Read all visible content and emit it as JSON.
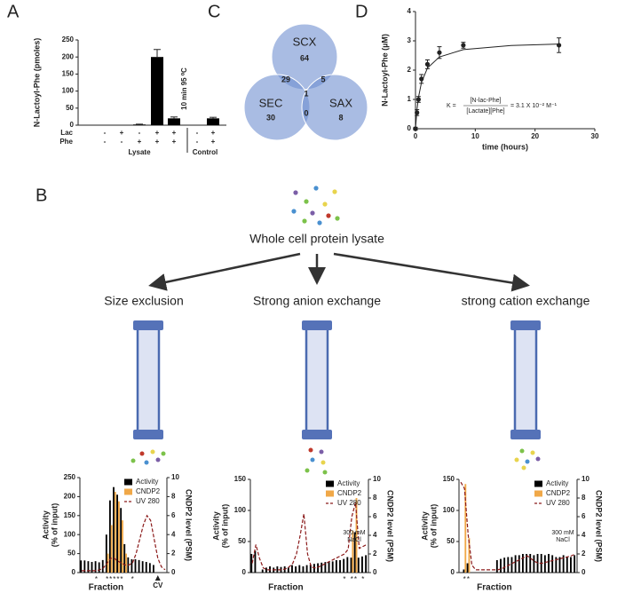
{
  "panel_labels": [
    "A",
    "B",
    "C",
    "D"
  ],
  "schematic": {
    "source": "Whole cell protein lysate",
    "methods": [
      "Size exclusion",
      "Strong anion exchange",
      "strong cation exchange"
    ]
  },
  "chart_data": [
    {
      "type": "bar",
      "ylabel": "N-Lactoyl-Phe (pmoles)",
      "color": "#000000",
      "values": [
        0,
        0,
        2,
        200,
        20,
        0,
        20
      ],
      "errors": [
        0,
        0,
        1,
        22,
        4,
        0,
        3
      ],
      "ylim": [
        0,
        250
      ],
      "yticks": [
        0,
        50,
        100,
        150,
        200,
        250
      ],
      "conditions": [
        {
          "name": "Lac",
          "values": [
            "-",
            "+",
            "-",
            "+",
            "+",
            "-",
            "+"
          ]
        },
        {
          "name": "Phe",
          "values": [
            "-",
            "-",
            "+",
            "+",
            "+",
            "-",
            "+"
          ]
        }
      ],
      "annotations": [
        null,
        null,
        null,
        null,
        "10 min 95 ⁰C",
        null,
        null
      ],
      "groups": [
        "Lysate",
        "Control"
      ]
    },
    {
      "type": "venn",
      "color": "#6f8fd0",
      "sets": [
        "SCX",
        "SEC",
        "SAX"
      ],
      "regions": {
        "SCX": 64,
        "SEC": 30,
        "SAX": 8,
        "SCX&SEC": 29,
        "SCX&SAX": 5,
        "SEC&SAX": 0,
        "SCX&SEC&SAX": 1
      }
    },
    {
      "type": "errorline",
      "xlabel": "time (hours)",
      "ylabel": "N-Lactoyl-Phe (µM)",
      "color": "#222222",
      "x": [
        0,
        0.25,
        0.5,
        1,
        2,
        4,
        8,
        24
      ],
      "values": [
        0,
        0.55,
        1.0,
        1.7,
        2.2,
        2.6,
        2.85,
        2.85
      ],
      "errors": [
        0.05,
        0.1,
        0.1,
        0.15,
        0.15,
        0.2,
        0.1,
        0.25
      ],
      "fit": {
        "x": [
          0,
          0.25,
          0.5,
          1,
          2,
          4,
          8,
          16,
          24
        ],
        "values": [
          0,
          0.65,
          1.07,
          1.58,
          2.07,
          2.45,
          2.7,
          2.84,
          2.89
        ]
      },
      "xlim": [
        0,
        30
      ],
      "xticks": [
        0,
        10,
        20,
        30
      ],
      "ylim": [
        0,
        4
      ],
      "yticks": [
        0,
        1,
        2,
        3,
        4
      ],
      "equation": {
        "prefix": "K =",
        "numerator": "[N-lac-Phe]",
        "denominator": "[Lactate][Phe]",
        "suffix": "= 3.1 X 10⁻² M⁻¹"
      }
    },
    {
      "type": "fractions",
      "ylabel": [
        "Activity",
        "(% of input)"
      ],
      "y2label": "CNDP2 level (PSM)",
      "xlabel": "Fraction",
      "legend": "upper right",
      "ylim": [
        0,
        250
      ],
      "yticks": [
        0,
        50,
        100,
        150,
        200,
        250
      ],
      "y2lim": [
        0,
        10
      ],
      "y2ticks": [
        0,
        2,
        4,
        6,
        8,
        10
      ],
      "series": [
        {
          "name": "Activity",
          "color": "#000000",
          "style": "bar",
          "values": [
            32,
            32,
            30,
            28,
            30,
            27,
            33,
            100,
            190,
            225,
            205,
            170,
            75,
            40,
            35,
            35,
            33,
            30,
            28,
            25,
            20,
            0,
            0,
            0
          ]
        },
        {
          "name": "CNDP2",
          "color": "#f0a848",
          "style": "bar",
          "axis": "y2",
          "values": [
            0,
            0,
            0,
            0,
            0,
            0,
            0,
            2,
            5,
            8.5,
            7.5,
            5.5,
            2,
            0,
            0,
            0,
            0,
            0,
            0,
            0,
            0,
            0,
            0,
            0
          ]
        },
        {
          "name": "UV 280",
          "color": "#8b1a1a",
          "style": "dashed",
          "axis": "y2",
          "values": [
            0.2,
            0.2,
            0.2,
            0.2,
            0.2,
            0.3,
            0.5,
            1,
            1.5,
            1.5,
            1.2,
            1,
            0.8,
            0.8,
            1,
            2,
            3.5,
            5,
            6,
            5.5,
            3.5,
            1.5,
            0.6,
            0.3
          ]
        }
      ],
      "fraction_marks": [
        null,
        null,
        null,
        null,
        "*",
        null,
        null,
        "*",
        "*",
        "*",
        "*",
        "*",
        null,
        null,
        "*",
        null,
        null,
        null,
        null,
        null,
        null,
        null,
        null,
        null
      ],
      "cv_marks": [
        null,
        null,
        null,
        null,
        null,
        null,
        null,
        null,
        null,
        null,
        null,
        null,
        null,
        null,
        null,
        null,
        null,
        null,
        null,
        null,
        null,
        "CV",
        null,
        null
      ]
    },
    {
      "type": "fractions",
      "ylabel": [
        "Activity",
        "(% of input)"
      ],
      "y2label": "CNDP2 level (PSM)",
      "xlabel": "Fraction",
      "legend": "upper right",
      "ylim": [
        0,
        150
      ],
      "yticks": [
        0,
        50,
        100,
        150
      ],
      "y2lim": [
        0,
        10
      ],
      "y2ticks": [
        0,
        2,
        4,
        6,
        8,
        10
      ],
      "annotation": [
        "300 mM",
        "NaCl"
      ],
      "series": [
        {
          "name": "Activity",
          "color": "#000000",
          "style": "bar",
          "values": [
            30,
            35,
            0,
            5,
            8,
            10,
            8,
            10,
            9,
            10,
            8,
            12,
            10,
            12,
            10,
            12,
            13,
            14,
            15,
            16,
            17,
            18,
            18,
            20,
            20,
            22,
            25,
            24,
            65,
            24,
            26,
            28
          ]
        },
        {
          "name": "CNDP2",
          "color": "#f0a848",
          "style": "bar",
          "axis": "y2",
          "values": [
            0,
            0,
            0,
            0,
            0,
            0,
            0,
            0,
            0,
            0,
            0,
            0,
            0,
            0,
            0,
            0,
            0,
            0,
            0,
            0,
            0,
            0,
            0,
            0,
            0,
            0,
            0,
            4.5,
            8,
            0,
            0,
            0
          ]
        },
        {
          "name": "UV 280",
          "color": "#8b1a1a",
          "style": "dashed",
          "axis": "y2",
          "values": [
            1,
            3,
            1.5,
            0.5,
            0.3,
            0.3,
            0.3,
            0.3,
            0.3,
            0.4,
            0.6,
            1,
            2,
            4,
            6.3,
            2,
            0.6,
            0.5,
            0.6,
            0.8,
            1,
            1.2,
            1.4,
            1.6,
            1.8,
            2,
            2.5,
            6,
            7.5,
            2.6,
            2.8,
            3
          ]
        }
      ],
      "fraction_marks": [
        null,
        null,
        null,
        null,
        null,
        null,
        null,
        null,
        null,
        null,
        null,
        null,
        null,
        null,
        null,
        null,
        null,
        null,
        null,
        null,
        null,
        null,
        null,
        null,
        null,
        "*",
        null,
        "*",
        "*",
        null,
        "*",
        null
      ]
    },
    {
      "type": "fractions",
      "ylabel": [
        "Activity",
        "(% of input)"
      ],
      "y2label": "CNDP2 level (PSM)",
      "xlabel": "Fraction",
      "legend": "upper right",
      "ylim": [
        0,
        150
      ],
      "yticks": [
        0,
        50,
        100,
        150
      ],
      "y2lim": [
        0,
        10
      ],
      "y2ticks": [
        0,
        2,
        4,
        6,
        8,
        10
      ],
      "annotation": [
        "300 mM",
        "NaCl"
      ],
      "series": [
        {
          "name": "Activity",
          "color": "#000000",
          "style": "bar",
          "values": [
            0,
            5,
            15,
            0,
            0,
            0,
            0,
            0,
            0,
            0,
            20,
            22,
            24,
            25,
            25,
            28,
            28,
            30,
            30,
            30,
            28,
            30,
            30,
            28,
            30,
            28,
            25,
            25,
            28,
            25,
            25,
            28
          ]
        },
        {
          "name": "CNDP2",
          "color": "#f0a848",
          "style": "bar",
          "axis": "y2",
          "values": [
            0,
            9.5,
            3.7,
            0,
            0,
            0,
            0,
            0,
            0,
            0,
            0,
            0,
            0,
            0,
            0,
            0,
            0,
            0,
            0,
            0,
            0,
            0,
            0,
            0,
            0,
            0,
            0,
            0,
            0,
            0,
            0,
            0
          ]
        },
        {
          "name": "UV 280",
          "color": "#8b1a1a",
          "style": "dashed",
          "axis": "y2",
          "values": [
            9.7,
            9,
            4,
            0.8,
            0.3,
            0.3,
            0.3,
            0.3,
            0.3,
            0.3,
            0.3,
            0.4,
            0.6,
            0.8,
            1,
            1.2,
            1.4,
            1.6,
            1.8,
            1.5,
            1.2,
            1,
            1,
            1.1,
            1.2,
            1.3,
            1.4,
            1.5,
            1.6,
            1.7,
            1.8,
            2
          ]
        }
      ],
      "fraction_marks": [
        null,
        "*",
        "*",
        null,
        null,
        null,
        null,
        null,
        null,
        null,
        null,
        null,
        null,
        null,
        null,
        null,
        null,
        null,
        null,
        null,
        null,
        null,
        null,
        null,
        null,
        null,
        null,
        null,
        null,
        null,
        null,
        null
      ]
    }
  ]
}
